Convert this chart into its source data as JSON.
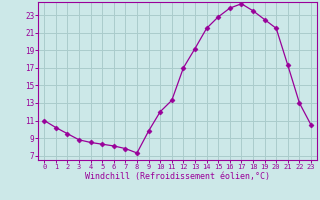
{
  "hours": [
    0,
    1,
    2,
    3,
    4,
    5,
    6,
    7,
    8,
    9,
    10,
    11,
    12,
    13,
    14,
    15,
    16,
    17,
    18,
    19,
    20,
    21,
    22,
    23
  ],
  "line_color": "#990099",
  "marker": "D",
  "markersize": 2.5,
  "bg_color": "#cce8e8",
  "grid_color": "#aacccc",
  "xlabel": "Windchill (Refroidissement éolien,°C)",
  "ylabel_ticks": [
    7,
    9,
    11,
    13,
    15,
    17,
    19,
    21,
    23
  ],
  "ylim": [
    6.5,
    24.5
  ],
  "xlim": [
    -0.5,
    23.5
  ],
  "tick_color": "#990099",
  "font_color": "#990099",
  "font_family": "monospace",
  "hours24": [
    0,
    1,
    2,
    3,
    4,
    5,
    6,
    7,
    8,
    9,
    10,
    11,
    12,
    13,
    14,
    15,
    16,
    17,
    18,
    19,
    20,
    21,
    22,
    23
  ],
  "vals24": [
    11.0,
    10.2,
    9.5,
    8.8,
    8.5,
    8.3,
    8.1,
    7.8,
    7.3,
    9.8,
    12.0,
    13.3,
    17.0,
    19.2,
    21.5,
    22.8,
    23.8,
    24.3,
    23.5,
    22.5,
    21.5,
    17.3,
    13.0,
    10.5
  ]
}
